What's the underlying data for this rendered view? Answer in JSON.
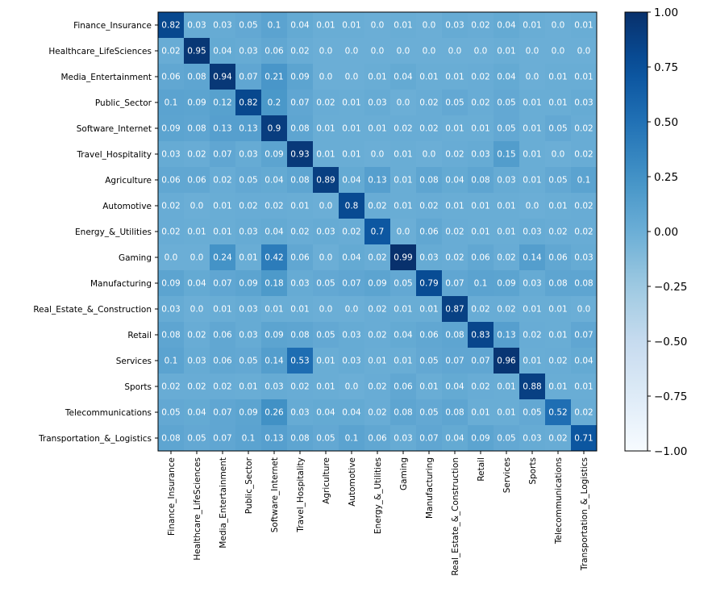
{
  "chart_data": {
    "type": "heatmap",
    "title": "",
    "xlabel": "",
    "ylabel": "",
    "labels": [
      "Finance_Insurance",
      "Healthcare_LifeSciences",
      "Media_Entertainment",
      "Public_Sector",
      "Software_Internet",
      "Travel_Hospitality",
      "Agriculture",
      "Automotive",
      "Energy_&_Utilities",
      "Gaming",
      "Manufacturing",
      "Real_Estate_&_Construction",
      "Retail",
      "Services",
      "Sports",
      "Telecommunications",
      "Transportation_&_Logistics"
    ],
    "matrix": [
      [
        0.82,
        0.03,
        0.03,
        0.05,
        0.1,
        0.04,
        0.01,
        0.01,
        0.0,
        0.01,
        0.0,
        0.03,
        0.02,
        0.04,
        0.01,
        0.0,
        0.01
      ],
      [
        0.02,
        0.95,
        0.04,
        0.03,
        0.06,
        0.02,
        0.0,
        0.0,
        0.0,
        0.0,
        0.0,
        0.0,
        0.0,
        0.01,
        0.0,
        0.0,
        0.0
      ],
      [
        0.06,
        0.08,
        0.94,
        0.07,
        0.21,
        0.09,
        0.0,
        0.0,
        0.01,
        0.04,
        0.01,
        0.01,
        0.02,
        0.04,
        0.0,
        0.01,
        0.01
      ],
      [
        0.1,
        0.09,
        0.12,
        0.82,
        0.2,
        0.07,
        0.02,
        0.01,
        0.03,
        0.0,
        0.02,
        0.05,
        0.02,
        0.05,
        0.01,
        0.01,
        0.03
      ],
      [
        0.09,
        0.08,
        0.13,
        0.13,
        0.9,
        0.08,
        0.01,
        0.01,
        0.01,
        0.02,
        0.02,
        0.01,
        0.01,
        0.05,
        0.01,
        0.05,
        0.02
      ],
      [
        0.03,
        0.02,
        0.07,
        0.03,
        0.09,
        0.93,
        0.01,
        0.01,
        0.0,
        0.01,
        0.0,
        0.02,
        0.03,
        0.15,
        0.01,
        0.0,
        0.02
      ],
      [
        0.06,
        0.06,
        0.02,
        0.05,
        0.04,
        0.08,
        0.89,
        0.04,
        0.13,
        0.01,
        0.08,
        0.04,
        0.08,
        0.03,
        0.01,
        0.05,
        0.1
      ],
      [
        0.02,
        0.0,
        0.01,
        0.02,
        0.02,
        0.01,
        0.0,
        0.8,
        0.02,
        0.01,
        0.02,
        0.01,
        0.01,
        0.01,
        0.0,
        0.01,
        0.02
      ],
      [
        0.02,
        0.01,
        0.01,
        0.03,
        0.04,
        0.02,
        0.03,
        0.02,
        0.7,
        0.0,
        0.06,
        0.02,
        0.01,
        0.01,
        0.03,
        0.02,
        0.02
      ],
      [
        0.0,
        0.0,
        0.24,
        0.01,
        0.42,
        0.06,
        0.0,
        0.04,
        0.02,
        0.99,
        0.03,
        0.02,
        0.06,
        0.02,
        0.14,
        0.06,
        0.03
      ],
      [
        0.09,
        0.04,
        0.07,
        0.09,
        0.18,
        0.03,
        0.05,
        0.07,
        0.09,
        0.05,
        0.79,
        0.07,
        0.1,
        0.09,
        0.03,
        0.08,
        0.08
      ],
      [
        0.03,
        0.0,
        0.01,
        0.03,
        0.01,
        0.01,
        0.0,
        0.0,
        0.02,
        0.01,
        0.01,
        0.87,
        0.02,
        0.02,
        0.01,
        0.01,
        0.0
      ],
      [
        0.08,
        0.02,
        0.06,
        0.03,
        0.09,
        0.08,
        0.05,
        0.03,
        0.02,
        0.04,
        0.06,
        0.08,
        0.83,
        0.13,
        0.02,
        0.01,
        0.07
      ],
      [
        0.1,
        0.03,
        0.06,
        0.05,
        0.14,
        0.53,
        0.01,
        0.03,
        0.01,
        0.01,
        0.05,
        0.07,
        0.07,
        0.96,
        0.01,
        0.02,
        0.04
      ],
      [
        0.02,
        0.02,
        0.02,
        0.01,
        0.03,
        0.02,
        0.01,
        0.0,
        0.02,
        0.06,
        0.01,
        0.04,
        0.02,
        0.01,
        0.88,
        0.01,
        0.01
      ],
      [
        0.05,
        0.04,
        0.07,
        0.09,
        0.26,
        0.03,
        0.04,
        0.04,
        0.02,
        0.08,
        0.05,
        0.08,
        0.01,
        0.01,
        0.05,
        0.52,
        0.02
      ],
      [
        0.08,
        0.05,
        0.07,
        0.1,
        0.13,
        0.08,
        0.05,
        0.1,
        0.06,
        0.03,
        0.07,
        0.04,
        0.09,
        0.05,
        0.03,
        0.02,
        0.71
      ]
    ],
    "colormap": "Blues",
    "vmin": -1.0,
    "vmax": 1.0,
    "colorbar_ticks": [
      1.0,
      0.75,
      0.5,
      0.25,
      0.0,
      -0.25,
      -0.5,
      -0.75,
      -1.0
    ],
    "colorbar_tick_labels": [
      "1.00",
      "0.75",
      "0.50",
      "0.25",
      "0.00",
      "−0.25",
      "−0.50",
      "−0.75",
      "−1.00"
    ],
    "legend": "colorbar-right"
  }
}
